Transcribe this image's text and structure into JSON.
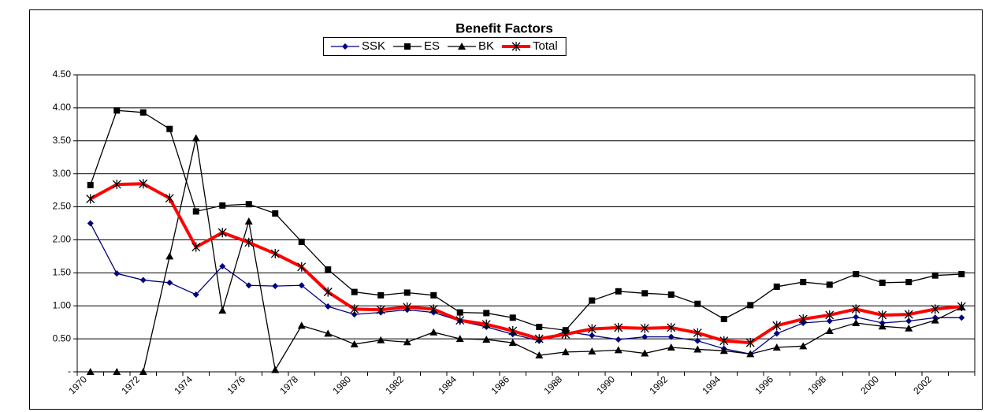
{
  "chart_data": {
    "type": "line",
    "title": "Benefit Factors",
    "categories": [
      "1970",
      null,
      "1972",
      null,
      "1974",
      null,
      "1976",
      null,
      "1978",
      null,
      "1980",
      null,
      "1982",
      null,
      "1984",
      null,
      "1986",
      null,
      "1988",
      null,
      "1990",
      null,
      "1992",
      null,
      "1994",
      null,
      "1996",
      null,
      "1998",
      null,
      "2000",
      null,
      "2002",
      null
    ],
    "series": [
      {
        "name": "SSK",
        "color": "#000080",
        "marker": "diamond",
        "values": [
          2.25,
          1.49,
          1.39,
          1.35,
          1.17,
          1.6,
          1.31,
          1.3,
          1.31,
          0.99,
          0.87,
          0.9,
          0.94,
          0.9,
          0.77,
          0.68,
          0.57,
          0.47,
          0.61,
          0.55,
          0.49,
          0.53,
          0.53,
          0.47,
          0.35,
          0.27,
          0.58,
          0.74,
          0.77,
          0.83,
          0.74,
          0.77,
          0.82,
          0.82
        ]
      },
      {
        "name": "ES",
        "color": "#000000",
        "marker": "square",
        "values": [
          2.83,
          3.96,
          3.93,
          3.68,
          2.43,
          2.52,
          2.54,
          2.4,
          1.97,
          1.55,
          1.21,
          1.16,
          1.2,
          1.16,
          0.9,
          0.89,
          0.82,
          0.68,
          0.63,
          1.08,
          1.22,
          1.19,
          1.17,
          1.03,
          0.8,
          1.01,
          1.29,
          1.36,
          1.32,
          1.48,
          1.35,
          1.36,
          1.46,
          1.48
        ]
      },
      {
        "name": "BK",
        "color": "#000000",
        "marker": "triangle",
        "values": [
          0,
          0,
          0,
          1.75,
          3.54,
          0.93,
          2.28,
          0.03,
          0.7,
          0.58,
          0.42,
          0.48,
          0.45,
          0.6,
          0.5,
          0.49,
          0.44,
          0.25,
          0.3,
          0.31,
          0.33,
          0.28,
          0.37,
          0.34,
          0.32,
          0.27,
          0.37,
          0.39,
          0.62,
          0.74,
          0.69,
          0.66,
          0.78,
          0.98
        ]
      },
      {
        "name": "Total",
        "color": "#ff0000",
        "marker": "star",
        "values": [
          2.62,
          2.84,
          2.85,
          2.63,
          1.89,
          2.11,
          1.96,
          1.79,
          1.59,
          1.21,
          0.95,
          0.94,
          0.98,
          0.95,
          0.78,
          0.72,
          0.62,
          0.5,
          0.57,
          0.65,
          0.67,
          0.66,
          0.67,
          0.59,
          0.47,
          0.44,
          0.7,
          0.8,
          0.86,
          0.95,
          0.86,
          0.87,
          0.95,
          0.99
        ]
      }
    ],
    "ylim": [
      0,
      4.5
    ],
    "yticks": [
      {
        "value": 0,
        "label": "-"
      },
      {
        "value": 0.5,
        "label": "0.50"
      },
      {
        "value": 1,
        "label": "1.00"
      },
      {
        "value": 1.5,
        "label": "1.50"
      },
      {
        "value": 2,
        "label": "2.00"
      },
      {
        "value": 2.5,
        "label": "2.50"
      },
      {
        "value": 3,
        "label": "3.00"
      },
      {
        "value": 3.5,
        "label": "3.50"
      },
      {
        "value": 4,
        "label": "4.00"
      },
      {
        "value": 4.5,
        "label": "4.50"
      }
    ],
    "grid": true,
    "legend": "top"
  }
}
